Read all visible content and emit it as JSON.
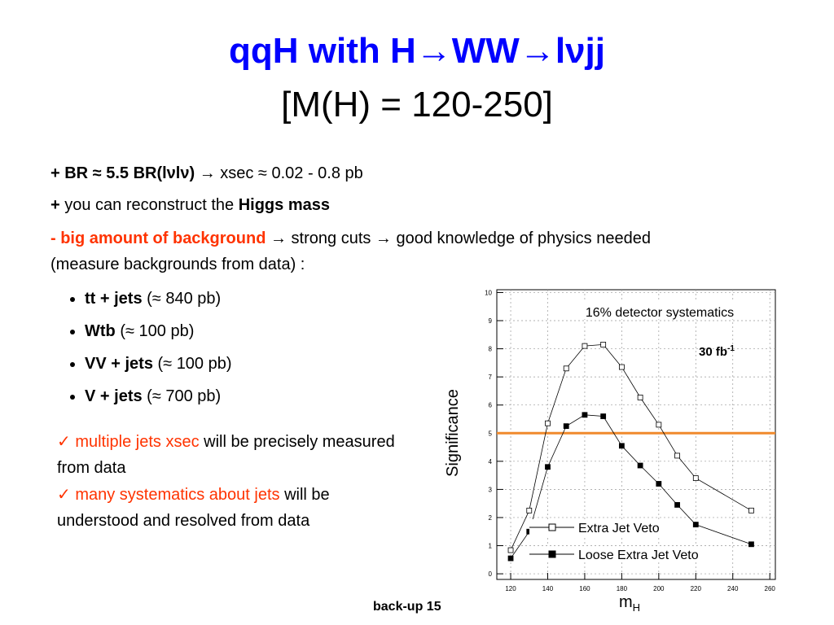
{
  "header": {
    "title": "qqH with H→WW→lνjj",
    "subtitle": "[M(H) = 120-250]"
  },
  "points": [
    [
      "+ BR ≈ 5.5 BR(lνlν)",
      " → xsec ≈ 0.02 - 0.8 pb"
    ],
    [
      "+",
      " you can reconstruct the ",
      "Higgs mass"
    ],
    [
      "- big amount of background",
      " → strong cuts → good knowledge of physics needed (measure backgrounds from data) :"
    ]
  ],
  "backgrounds": [
    [
      "tt + jets",
      " (≈ 840 pb)"
    ],
    [
      "Wtb",
      " (≈ 100 pb)"
    ],
    [
      "VV + jets",
      " (≈ 100 pb)"
    ],
    [
      "V + jets",
      " (≈ 700 pb)"
    ]
  ],
  "notes": [
    [
      "✓ multiple jets xsec",
      " will be precisely measured from data"
    ],
    [
      "✓ many systematics about jets",
      " will be understood and resolved from data"
    ]
  ],
  "chart_data": {
    "type": "line",
    "xlabel": "m",
    "xlabel_sub": "H",
    "ylabel": "Significance",
    "x": [
      120,
      130,
      140,
      150,
      160,
      170,
      180,
      190,
      200,
      210,
      220,
      250
    ],
    "series": [
      {
        "name": "Extra Jet Veto",
        "color": "#000000",
        "marker": "open",
        "values": [
          0.84,
          2.25,
          5.35,
          7.3,
          8.1,
          8.15,
          7.35,
          6.27,
          5.3,
          4.2,
          3.4,
          2.25
        ]
      },
      {
        "name": "Loose Extra Jet Veto",
        "color": "#000000",
        "marker": "filled",
        "values": [
          0.55,
          1.5,
          3.8,
          5.25,
          5.65,
          5.6,
          4.55,
          3.85,
          3.2,
          2.45,
          1.75,
          1.05
        ]
      }
    ],
    "threshold": {
      "value": 5,
      "color": "#f08a2c"
    },
    "annotations": [
      "16% detector systematics",
      {
        "text": "30 fb",
        "sup": "-1"
      }
    ],
    "xlim": [
      112.5,
      263
    ],
    "ylim": [
      -0.2,
      10.1
    ],
    "xticks": [
      120,
      140,
      160,
      180,
      200,
      220,
      240,
      260
    ],
    "yticks": [
      0,
      1,
      2,
      3,
      4,
      5,
      6,
      7,
      8,
      9,
      10
    ],
    "grid": true
  },
  "footer": "back-up 15"
}
